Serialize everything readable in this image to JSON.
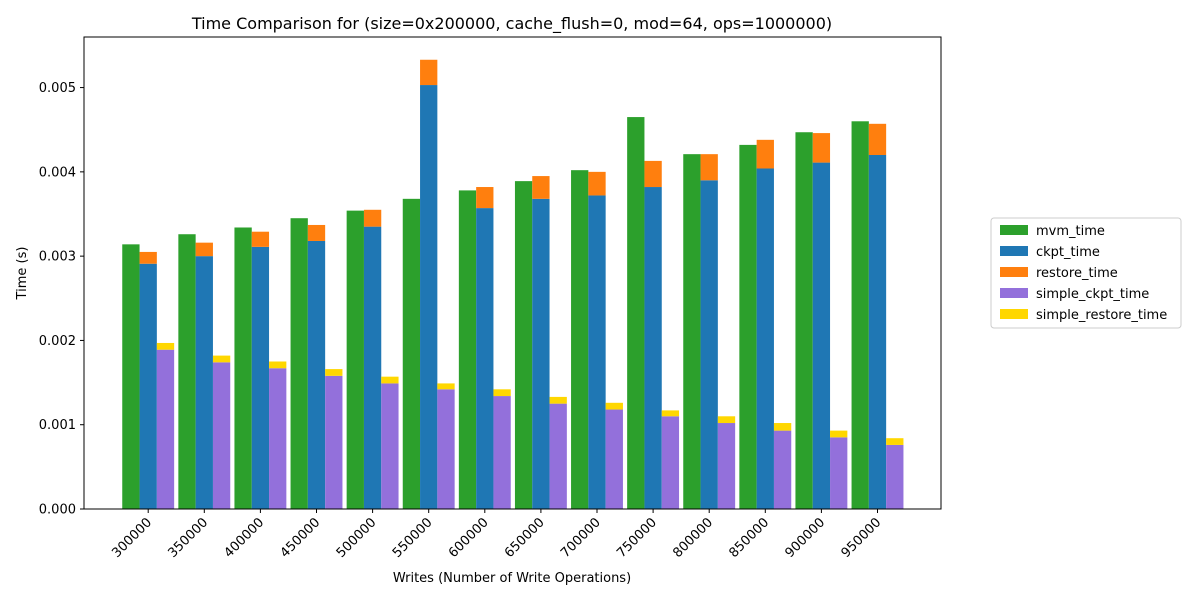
{
  "chart_data": {
    "type": "bar",
    "title": "Time Comparison for (size=0x200000, cache_flush=0, mod=64, ops=1000000)",
    "xlabel": "Writes (Number of Write Operations)",
    "ylabel": "Time (s)",
    "ylim": [
      0,
      0.0056
    ],
    "yticks": [
      0.0,
      0.001,
      0.002,
      0.003,
      0.004,
      0.005
    ],
    "ytick_labels": [
      "0.000",
      "0.001",
      "0.002",
      "0.003",
      "0.004",
      "0.005"
    ],
    "grid": false,
    "legend_position": "right",
    "categories": [
      "300000",
      "350000",
      "400000",
      "450000",
      "500000",
      "550000",
      "600000",
      "650000",
      "700000",
      "750000",
      "800000",
      "850000",
      "900000",
      "950000"
    ],
    "series": [
      {
        "name": "mvm_time",
        "color": "#2ca02c",
        "group": "mvm",
        "stack": "base",
        "values": [
          0.00314,
          0.00326,
          0.00334,
          0.00345,
          0.00354,
          0.00368,
          0.00378,
          0.00389,
          0.00402,
          0.00465,
          0.00421,
          0.00432,
          0.00447,
          0.0046
        ]
      },
      {
        "name": "ckpt_time",
        "color": "#1f77b4",
        "group": "ckpt",
        "stack": "base",
        "values": [
          0.00291,
          0.003,
          0.00311,
          0.00318,
          0.00335,
          0.00503,
          0.00357,
          0.00368,
          0.00372,
          0.00382,
          0.0039,
          0.00404,
          0.00411,
          0.0042
        ]
      },
      {
        "name": "restore_time",
        "color": "#ff7f0e",
        "group": "ckpt",
        "stack": "top",
        "values": [
          0.00014,
          0.00016,
          0.00018,
          0.00019,
          0.0002,
          0.0003,
          0.00025,
          0.00027,
          0.00028,
          0.00031,
          0.00031,
          0.00034,
          0.00035,
          0.00037
        ]
      },
      {
        "name": "simple_ckpt_time",
        "color": "#9370db",
        "group": "simple",
        "stack": "base",
        "values": [
          0.00189,
          0.00174,
          0.00167,
          0.00158,
          0.00149,
          0.00142,
          0.00134,
          0.00125,
          0.00118,
          0.0011,
          0.00102,
          0.00093,
          0.00085,
          0.00076
        ]
      },
      {
        "name": "simple_restore_time",
        "color": "#ffd700",
        "group": "simple",
        "stack": "top",
        "values": [
          8e-05,
          8e-05,
          8e-05,
          8e-05,
          8e-05,
          7e-05,
          8e-05,
          8e-05,
          8e-05,
          7e-05,
          8e-05,
          9e-05,
          8e-05,
          8e-05
        ]
      }
    ]
  }
}
